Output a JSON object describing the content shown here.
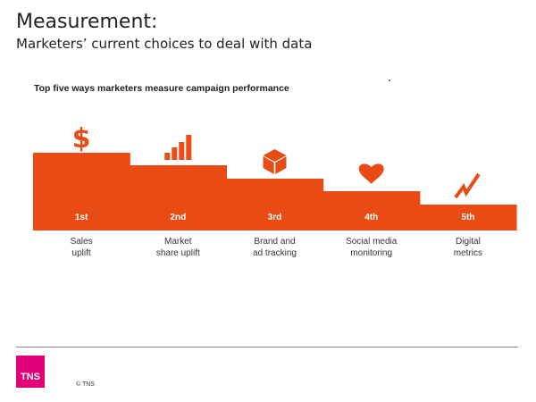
{
  "slide": {
    "title": "Measurement:",
    "subtitle": "Marketers’ current choices to deal with data"
  },
  "footer": {
    "logo_text": "TNS",
    "copyright": "© TNS"
  },
  "colors": {
    "bar": "#e84c14",
    "logo": "#e2007a"
  },
  "chart_data": {
    "type": "bar",
    "title": "Top five ways marketers measure campaign performance",
    "categories": [
      [
        "Sales",
        "uplift"
      ],
      [
        "Market",
        "share uplift"
      ],
      [
        "Brand and",
        "ad tracking"
      ],
      [
        "Social media",
        "monitoring"
      ],
      [
        "Digital",
        "metrics"
      ]
    ],
    "ranks": [
      "1st",
      "2nd",
      "3rd",
      "4th",
      "5th"
    ],
    "values": [
      5,
      4,
      3,
      2,
      1
    ],
    "icons": [
      "dollar-icon",
      "bar-chart-icon",
      "cube-icon",
      "heart-icon",
      "zigzag-icon"
    ]
  }
}
